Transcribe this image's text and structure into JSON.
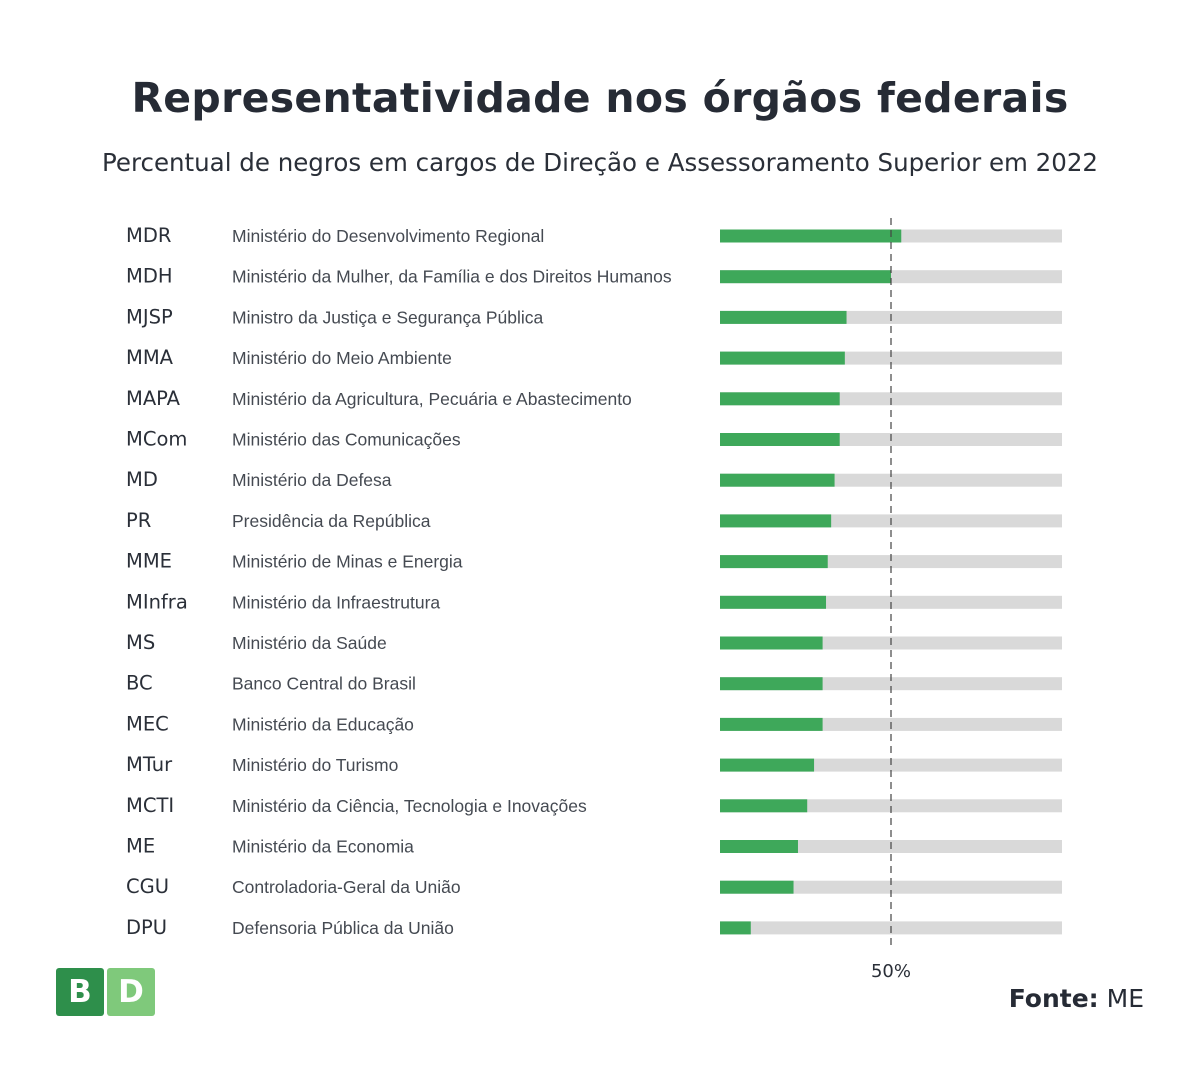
{
  "title": "Representatividade nos órgãos federais",
  "subtitle": "Percentual de negros em cargos de Direção e Assessoramento Superior em 2022",
  "source": {
    "label": "Fonte:",
    "value": "ME"
  },
  "logo": {
    "left": "B",
    "right": "D",
    "left_color": "#2e8f4b",
    "right_color": "#7fc97b"
  },
  "colors": {
    "bar": "#3ea85a",
    "track": "#d9d9d9",
    "ref_line": "#444444"
  },
  "chart_data": {
    "type": "bar",
    "orientation": "horizontal",
    "title": "Representatividade nos órgãos federais",
    "subtitle": "Percentual de negros em cargos de Direção e Assessoramento Superior em 2022",
    "xlim": [
      0,
      100
    ],
    "reference_line": {
      "value": 50,
      "label": "50%"
    },
    "grid": false,
    "categories": [
      "MDR",
      "MDH",
      "MJSP",
      "MMA",
      "MAPA",
      "MCom",
      "MD",
      "PR",
      "MME",
      "MInfra",
      "MS",
      "BC",
      "MEC",
      "MTur",
      "MCTI",
      "ME",
      "CGU",
      "DPU"
    ],
    "labels": [
      "Ministério do Desenvolvimento Regional",
      "Ministério da Mulher, da Família e dos Direitos Humanos",
      "Ministro da Justiça e Segurança Pública",
      "Ministério do Meio Ambiente",
      "Ministério da Agricultura, Pecuária e Abastecimento",
      "Ministério das Comunicações",
      "Ministério da Defesa",
      "Presidência da República",
      "Ministério de Minas e Energia",
      "Ministério da Infraestrutura",
      "Ministério da Saúde",
      "Banco Central do Brasil",
      "Ministério da Educação",
      "Ministério do Turismo",
      "Ministério da Ciência, Tecnologia e Inovações",
      "Ministério da Economia",
      "Controladoria-Geral da União",
      "Defensoria Pública da União"
    ],
    "values": [
      53,
      50,
      37,
      36.5,
      35,
      35,
      33.5,
      32.5,
      31.5,
      31,
      30,
      30,
      30,
      27.5,
      25.5,
      22.8,
      21.5,
      9
    ]
  }
}
